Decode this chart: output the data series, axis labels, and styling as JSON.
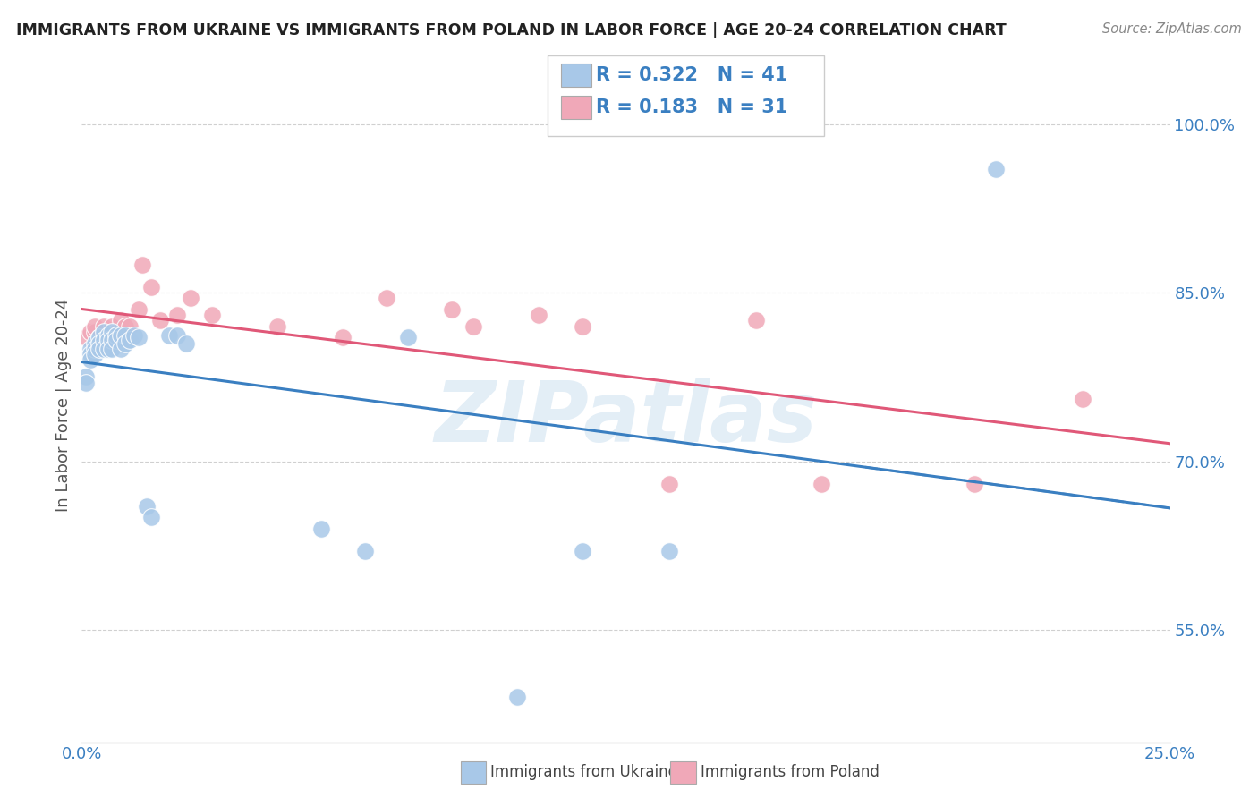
{
  "title": "IMMIGRANTS FROM UKRAINE VS IMMIGRANTS FROM POLAND IN LABOR FORCE | AGE 20-24 CORRELATION CHART",
  "source": "Source: ZipAtlas.com",
  "ylabel": "In Labor Force | Age 20-24",
  "xlim": [
    0.0,
    0.25
  ],
  "ylim": [
    0.45,
    1.05
  ],
  "xticks": [
    0.0,
    0.025,
    0.05,
    0.075,
    0.1,
    0.125,
    0.15,
    0.175,
    0.2,
    0.225,
    0.25
  ],
  "xticklabels": [
    "0.0%",
    "",
    "",
    "",
    "",
    "",
    "",
    "",
    "",
    "",
    "25.0%"
  ],
  "ytick_positions": [
    0.55,
    0.7,
    0.85,
    1.0
  ],
  "ytick_labels": [
    "55.0%",
    "70.0%",
    "85.0%",
    "100.0%"
  ],
  "ukraine_x": [
    0.001,
    0.001,
    0.002,
    0.002,
    0.002,
    0.003,
    0.003,
    0.003,
    0.004,
    0.004,
    0.004,
    0.005,
    0.005,
    0.005,
    0.006,
    0.006,
    0.006,
    0.007,
    0.007,
    0.007,
    0.008,
    0.008,
    0.009,
    0.009,
    0.01,
    0.01,
    0.011,
    0.012,
    0.013,
    0.015,
    0.016,
    0.02,
    0.022,
    0.024,
    0.055,
    0.065,
    0.075,
    0.1,
    0.115,
    0.135,
    0.21
  ],
  "ukraine_y": [
    0.775,
    0.77,
    0.8,
    0.795,
    0.79,
    0.805,
    0.8,
    0.795,
    0.81,
    0.805,
    0.8,
    0.815,
    0.808,
    0.8,
    0.812,
    0.808,
    0.8,
    0.815,
    0.808,
    0.8,
    0.812,
    0.808,
    0.812,
    0.8,
    0.812,
    0.805,
    0.808,
    0.812,
    0.81,
    0.66,
    0.65,
    0.812,
    0.812,
    0.805,
    0.64,
    0.62,
    0.81,
    0.49,
    0.62,
    0.62,
    0.96
  ],
  "poland_x": [
    0.001,
    0.002,
    0.003,
    0.003,
    0.004,
    0.005,
    0.006,
    0.007,
    0.008,
    0.009,
    0.01,
    0.011,
    0.013,
    0.014,
    0.016,
    0.018,
    0.022,
    0.025,
    0.03,
    0.045,
    0.06,
    0.07,
    0.085,
    0.09,
    0.105,
    0.115,
    0.135,
    0.155,
    0.17,
    0.205,
    0.23
  ],
  "poland_y": [
    0.81,
    0.815,
    0.815,
    0.82,
    0.81,
    0.82,
    0.81,
    0.82,
    0.815,
    0.825,
    0.82,
    0.82,
    0.835,
    0.875,
    0.855,
    0.825,
    0.83,
    0.845,
    0.83,
    0.82,
    0.81,
    0.845,
    0.835,
    0.82,
    0.83,
    0.82,
    0.68,
    0.825,
    0.68,
    0.68,
    0.755
  ],
  "ukraine_color": "#a8c8e8",
  "poland_color": "#f0a8b8",
  "ukraine_line_color": "#3a7fc1",
  "poland_line_color": "#e05878",
  "ukraine_R": 0.322,
  "ukraine_N": 41,
  "poland_R": 0.183,
  "poland_N": 31,
  "watermark_text": "ZIPatlas",
  "background_color": "#ffffff",
  "grid_color": "#e8e8e8",
  "title_color": "#222222",
  "axis_label_color": "#3a7fc1"
}
